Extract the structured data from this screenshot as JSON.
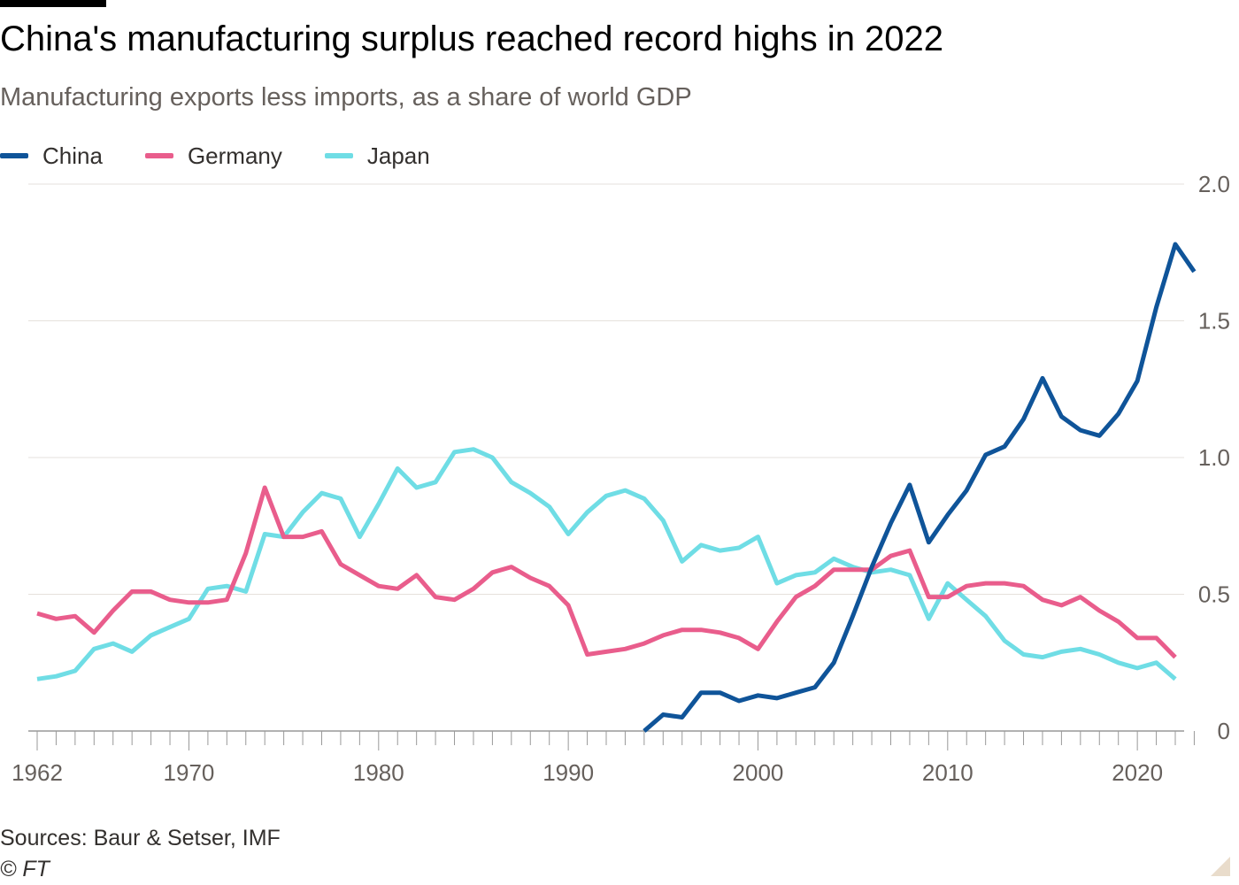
{
  "title": "China's manufacturing surplus reached record highs in 2022",
  "subtitle": "Manufacturing exports less imports, as a share of world GDP",
  "source": "Sources: Baur & Setser, IMF",
  "copyright": "© FT",
  "colors": {
    "china": "#0f5499",
    "germany": "#e95d8c",
    "japan": "#6fdde5",
    "grid": "#e6e1dc",
    "axis": "#66605c",
    "tick_label": "#66605c",
    "zero_line": "#999999"
  },
  "chart_data": {
    "type": "line",
    "title": "China's manufacturing surplus reached record highs in 2022",
    "xlabel": "",
    "ylabel": "",
    "xlim": [
      1962,
      2023
    ],
    "ylim": [
      0,
      2.0
    ],
    "x_ticks": [
      1962,
      1970,
      1980,
      1990,
      2000,
      2010,
      2020
    ],
    "y_ticks": [
      0,
      0.5,
      1.0,
      1.5,
      2.0
    ],
    "y_tick_labels": [
      "0",
      "0.5",
      "1.0",
      "1.5",
      "2.0"
    ],
    "legend_position": "top-left",
    "series": [
      {
        "name": "China",
        "color": "#0f5499",
        "x": [
          1994,
          1995,
          1996,
          1997,
          1998,
          1999,
          2000,
          2001,
          2002,
          2003,
          2004,
          2005,
          2006,
          2007,
          2008,
          2009,
          2010,
          2011,
          2012,
          2013,
          2014,
          2015,
          2016,
          2017,
          2018,
          2019,
          2020,
          2021,
          2022,
          2023
        ],
        "values": [
          0.0,
          0.06,
          0.05,
          0.14,
          0.14,
          0.11,
          0.13,
          0.12,
          0.14,
          0.16,
          0.25,
          0.42,
          0.6,
          0.76,
          0.9,
          0.69,
          0.79,
          0.88,
          1.01,
          1.04,
          1.14,
          1.29,
          1.15,
          1.1,
          1.08,
          1.16,
          1.28,
          1.55,
          1.78,
          1.68
        ]
      },
      {
        "name": "Germany",
        "color": "#e95d8c",
        "x": [
          1962,
          1963,
          1964,
          1965,
          1966,
          1967,
          1968,
          1969,
          1970,
          1971,
          1972,
          1973,
          1974,
          1975,
          1976,
          1977,
          1978,
          1979,
          1980,
          1981,
          1982,
          1983,
          1984,
          1985,
          1986,
          1987,
          1988,
          1989,
          1990,
          1991,
          1992,
          1993,
          1994,
          1995,
          1996,
          1997,
          1998,
          1999,
          2000,
          2001,
          2002,
          2003,
          2004,
          2005,
          2006,
          2007,
          2008,
          2009,
          2010,
          2011,
          2012,
          2013,
          2014,
          2015,
          2016,
          2017,
          2018,
          2019,
          2020,
          2021,
          2022
        ],
        "values": [
          0.43,
          0.41,
          0.42,
          0.36,
          0.44,
          0.51,
          0.51,
          0.48,
          0.47,
          0.47,
          0.48,
          0.65,
          0.89,
          0.71,
          0.71,
          0.73,
          0.61,
          0.57,
          0.53,
          0.52,
          0.57,
          0.49,
          0.48,
          0.52,
          0.58,
          0.6,
          0.56,
          0.53,
          0.46,
          0.28,
          0.29,
          0.3,
          0.32,
          0.35,
          0.37,
          0.37,
          0.36,
          0.34,
          0.3,
          0.4,
          0.49,
          0.53,
          0.59,
          0.59,
          0.59,
          0.64,
          0.66,
          0.49,
          0.49,
          0.53,
          0.54,
          0.54,
          0.53,
          0.48,
          0.46,
          0.49,
          0.44,
          0.4,
          0.34,
          0.34,
          0.27
        ]
      },
      {
        "name": "Japan",
        "color": "#6fdde5",
        "x": [
          1962,
          1963,
          1964,
          1965,
          1966,
          1967,
          1968,
          1969,
          1970,
          1971,
          1972,
          1973,
          1974,
          1975,
          1976,
          1977,
          1978,
          1979,
          1980,
          1981,
          1982,
          1983,
          1984,
          1985,
          1986,
          1987,
          1988,
          1989,
          1990,
          1991,
          1992,
          1993,
          1994,
          1995,
          1996,
          1997,
          1998,
          1999,
          2000,
          2001,
          2002,
          2003,
          2004,
          2005,
          2006,
          2007,
          2008,
          2009,
          2010,
          2011,
          2012,
          2013,
          2014,
          2015,
          2016,
          2017,
          2018,
          2019,
          2020,
          2021,
          2022
        ],
        "values": [
          0.19,
          0.2,
          0.22,
          0.3,
          0.32,
          0.29,
          0.35,
          0.38,
          0.41,
          0.52,
          0.53,
          0.51,
          0.72,
          0.71,
          0.8,
          0.87,
          0.85,
          0.71,
          0.83,
          0.96,
          0.89,
          0.91,
          1.02,
          1.03,
          1.0,
          0.91,
          0.87,
          0.82,
          0.72,
          0.8,
          0.86,
          0.88,
          0.85,
          0.77,
          0.62,
          0.68,
          0.66,
          0.67,
          0.71,
          0.54,
          0.57,
          0.58,
          0.63,
          0.6,
          0.58,
          0.59,
          0.57,
          0.41,
          0.54,
          0.48,
          0.42,
          0.33,
          0.28,
          0.27,
          0.29,
          0.3,
          0.28,
          0.25,
          0.23,
          0.25,
          0.19
        ]
      }
    ]
  }
}
